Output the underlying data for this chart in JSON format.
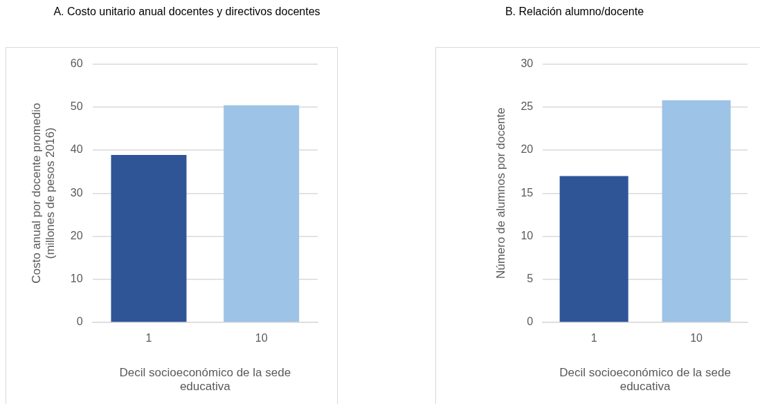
{
  "chart_data": [
    {
      "type": "bar",
      "title": "A. Costo unitario anual docentes y directivos docentes",
      "ylabel": "Costo anual por docente promedio (millones de pesos 2016)",
      "xlabel": "Decil socioeconómico de la sede educativa",
      "categories": [
        "1",
        "10"
      ],
      "values": [
        38.9,
        50.4
      ],
      "colors": [
        "#2f5597",
        "#9dc3e6"
      ],
      "ylim": [
        0,
        60
      ],
      "yticks": [
        0,
        10,
        20,
        30,
        40,
        50,
        60
      ],
      "grid": "y",
      "legend": false
    },
    {
      "type": "bar",
      "title": "B. Relación alumno/docente",
      "ylabel": "Número de alumnos por docente",
      "xlabel": "Decil socioeconómico de la sede educativa",
      "categories": [
        "1",
        "10"
      ],
      "values": [
        17.0,
        25.8
      ],
      "colors": [
        "#2f5597",
        "#9dc3e6"
      ],
      "ylim": [
        0,
        30
      ],
      "yticks": [
        0,
        5,
        10,
        15,
        20,
        25,
        30
      ],
      "grid": "y",
      "legend": false
    }
  ]
}
